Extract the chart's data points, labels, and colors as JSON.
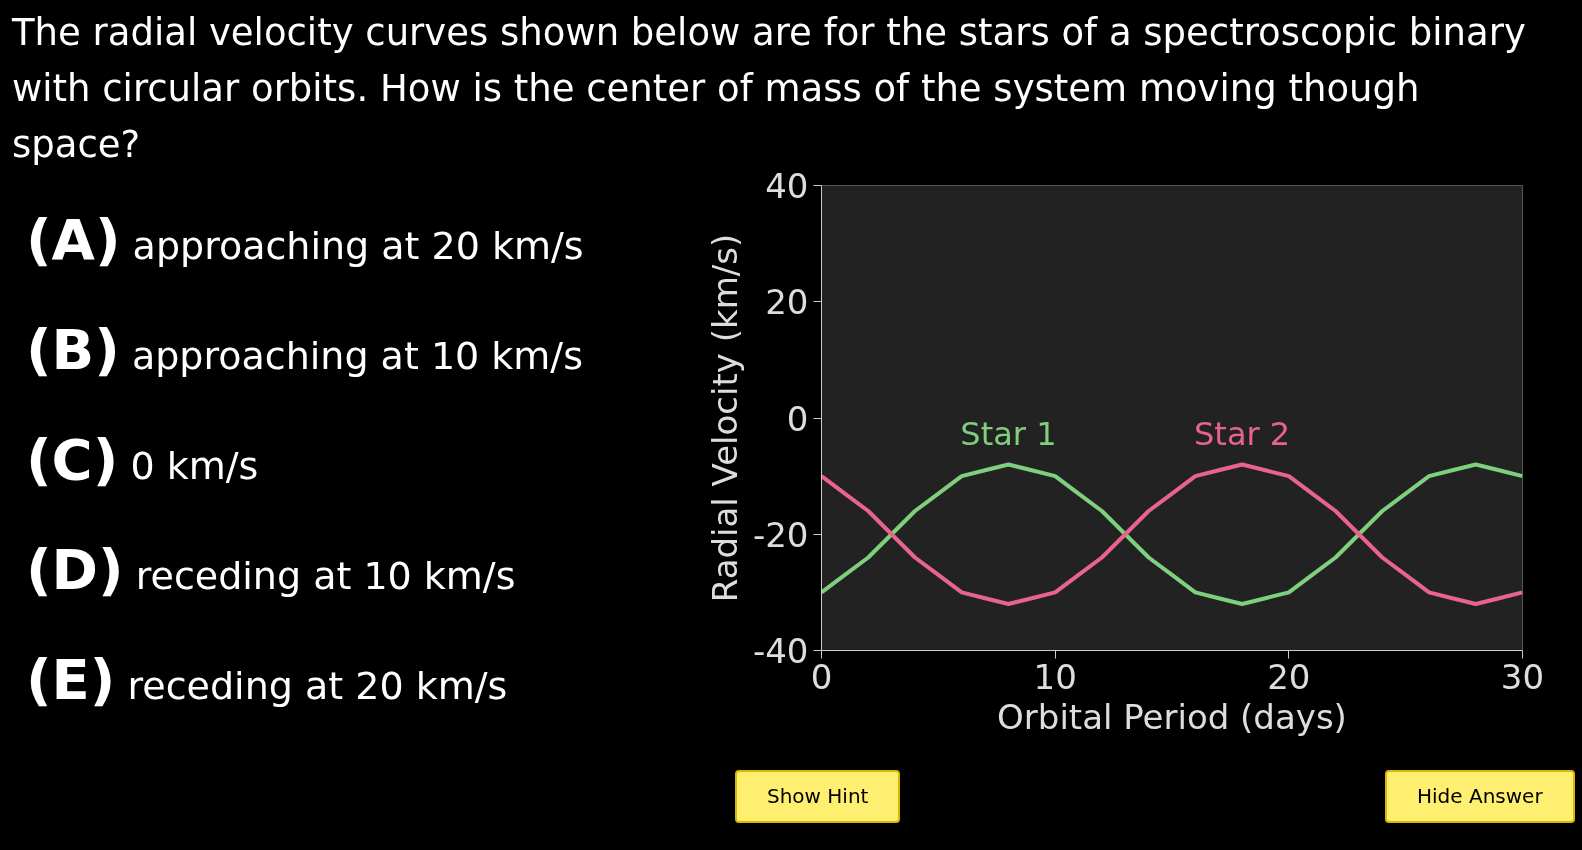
{
  "chart_data": {
    "type": "line",
    "title": "The radial velocity curves shown below are for the stars of a spectroscopic binary with circular orbits. How is the center of mass of the system moving though space?",
    "xlabel": "Orbital Period (days)",
    "ylabel": "Radial Velocity (km/s)",
    "x": [
      0,
      1,
      2,
      3,
      4,
      5,
      6,
      7,
      8,
      9,
      10,
      11,
      12,
      13,
      14,
      15,
      16,
      17,
      18,
      19,
      20,
      21,
      22,
      23,
      24,
      25,
      26,
      27,
      28,
      29,
      30
    ],
    "series": [
      {
        "name": "Star 1",
        "color": "#7fcf7f",
        "values": [
          -30,
          -27,
          -24,
          -20,
          -16,
          -13,
          -10,
          -9,
          -8,
          -9,
          -10,
          -13,
          -16,
          -20,
          -24,
          -27,
          -30,
          -31,
          -32,
          -31,
          -30,
          -27,
          -24,
          -20,
          -16,
          -13,
          -10,
          -9,
          -8,
          -9,
          -10
        ]
      },
      {
        "name": "Star 2",
        "color": "#e8648c",
        "values": [
          -10,
          -13,
          -16,
          -20,
          -24,
          -27,
          -30,
          -31,
          -32,
          -31,
          -30,
          -27,
          -24,
          -20,
          -16,
          -13,
          -10,
          -9,
          -8,
          -9,
          -10,
          -13,
          -16,
          -20,
          -24,
          -27,
          -30,
          -31,
          -32,
          -31,
          -30
        ]
      }
    ],
    "xlim": [
      0,
      30
    ],
    "xticks": [
      0,
      10,
      20,
      30
    ],
    "ylim": [
      -40,
      40
    ],
    "yticks": [
      -40,
      -20,
      0,
      20,
      40
    ],
    "grid": false,
    "marker": "none",
    "line_style": "solid",
    "annotations": [
      "(A) approaching at 20 km/s",
      "(B) approaching at 10 km/s",
      "(C) 0 km/s",
      "(D) receding at 10 km/s",
      "(E) receding at 20 km/s",
      "Show Hint",
      "Hide Answer"
    ]
  }
}
